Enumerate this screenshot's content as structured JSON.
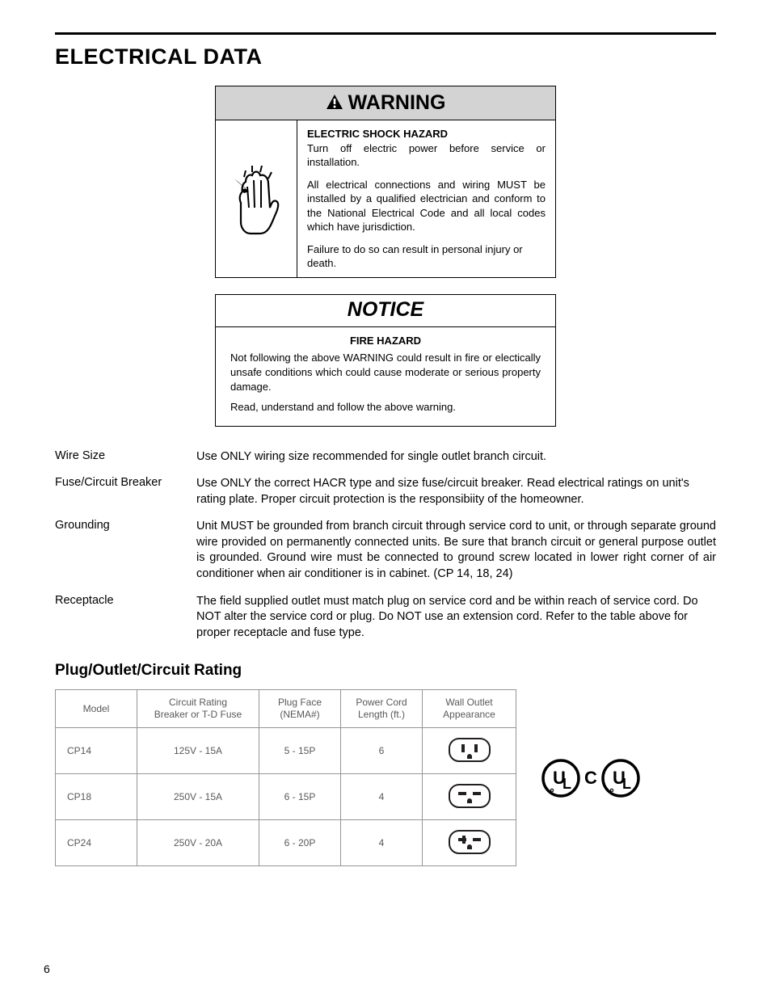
{
  "page_number": "6",
  "section_title": "ELECTRICAL DATA",
  "warning": {
    "header": "WARNING",
    "subtitle": "ELECTRIC SHOCK HAZARD",
    "p1": "Turn off electric power before service or installation.",
    "p2": "All electrical connections and wiring MUST be installed by a qualified electrician and conform to the National Electrical Code and all local codes which have jurisdiction.",
    "p3": "Failure to do so can result in personal injury or death."
  },
  "notice": {
    "header": "NOTICE",
    "subtitle": "FIRE HAZARD",
    "p1": "Not following the above WARNING could result in fire or electically unsafe conditions which could cause moderate or serious property damage.",
    "p2": "Read, understand and follow the above warning."
  },
  "definitions": [
    {
      "label": "Wire Size",
      "text": "Use ONLY wiring size recommended for single outlet branch circuit."
    },
    {
      "label": "Fuse/Circuit Breaker",
      "text": "Use ONLY the correct HACR type and size fuse/circuit breaker. Read electrical ratings on unit's rating plate. Proper circuit protection is the responsibiity of the homeowner."
    },
    {
      "label": "Grounding",
      "text": "Unit MUST be grounded from branch circuit through service cord to unit, or through separate ground wire provided on permanently connected units. Be sure that branch circuit or general purpose outlet is grounded. Ground wire must be connected to ground screw located in lower right corner of air conditioner when air conditioner is in cabinet. (CP 14, 18, 24)",
      "justify": true
    },
    {
      "label": "Receptacle",
      "text": "The field supplied outlet must match plug on service cord and be within reach of service cord. Do NOT alter the service cord or plug. Do NOT use an extension cord.  Refer to the table above for proper receptacle and fuse type."
    }
  ],
  "subsection_title": "Plug/Outlet/Circuit Rating",
  "ratings_table": {
    "headers": {
      "model": "Model",
      "circuit": "Circuit Rating\nBreaker or T-D Fuse",
      "plug": "Plug Face\n(NEMA#)",
      "cord": "Power Cord\nLength (ft.)",
      "outlet": "Wall Outlet\nAppearance"
    },
    "rows": [
      {
        "model": "CP14",
        "circuit": "125V - 15A",
        "plug": "5 - 15P",
        "cord": "6",
        "outlet_type": "5-15"
      },
      {
        "model": "CP18",
        "circuit": "250V - 15A",
        "plug": "6 - 15P",
        "cord": "4",
        "outlet_type": "6-15"
      },
      {
        "model": "CP24",
        "circuit": "250V - 20A",
        "plug": "6 - 20P",
        "cord": "4",
        "outlet_type": "6-20"
      }
    ]
  },
  "colors": {
    "table_border": "#939598",
    "table_text": "#58595b",
    "warning_bg": "#d3d3d3"
  }
}
